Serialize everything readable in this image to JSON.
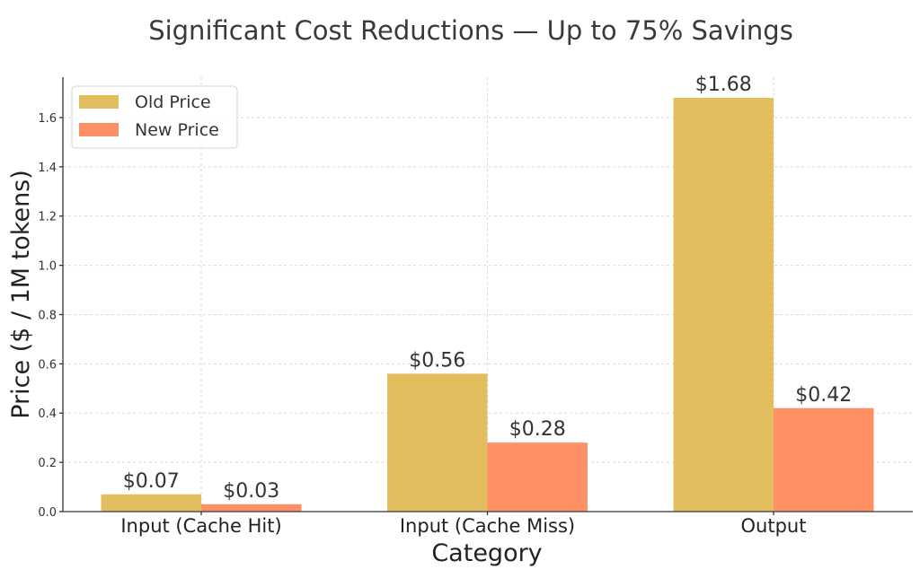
{
  "chart_data": {
    "type": "bar",
    "title": "Significant Cost Reductions — Up to 75% Savings",
    "xlabel": "Category",
    "ylabel": "Price ($ / 1M tokens)",
    "categories": [
      "Input (Cache Hit)",
      "Input (Cache Miss)",
      "Output"
    ],
    "series": [
      {
        "name": "Old Price",
        "values": [
          0.07,
          0.56,
          1.68
        ],
        "labels": [
          "$0.07",
          "$0.56",
          "$1.68"
        ],
        "color": "#E2BE5F"
      },
      {
        "name": "New Price",
        "values": [
          0.03,
          0.28,
          0.42
        ],
        "labels": [
          "$0.03",
          "$0.28",
          "$0.42"
        ],
        "color": "#FF8F64"
      }
    ],
    "ylim": [
      0,
      1.764
    ],
    "yticks": [
      0.0,
      0.2,
      0.4,
      0.6,
      0.8,
      1.0,
      1.2,
      1.4,
      1.6
    ],
    "ytick_labels": [
      "0.0",
      "0.2",
      "0.4",
      "0.6",
      "0.8",
      "1.0",
      "1.2",
      "1.4",
      "1.6"
    ],
    "grid": true,
    "legend_position": "upper left",
    "bar_width": 0.35
  }
}
